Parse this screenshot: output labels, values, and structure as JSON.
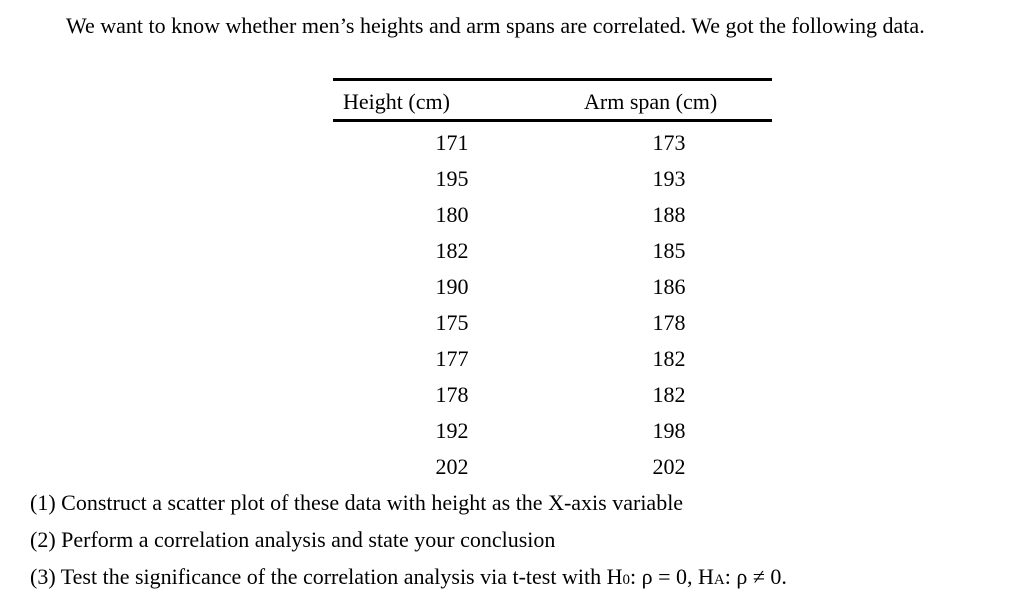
{
  "intro": "We want to know whether men’s heights and arm spans are correlated. We got the following data.",
  "table": {
    "headers": [
      "Height (cm)",
      "Arm span (cm)"
    ],
    "rows": [
      [
        "171",
        "173"
      ],
      [
        "195",
        "193"
      ],
      [
        "180",
        "188"
      ],
      [
        "182",
        "185"
      ],
      [
        "190",
        "186"
      ],
      [
        "175",
        "178"
      ],
      [
        "177",
        "182"
      ],
      [
        "178",
        "182"
      ],
      [
        "192",
        "198"
      ],
      [
        "202",
        "202"
      ]
    ]
  },
  "questions": {
    "q1": "(1) Construct a scatter plot of these data with height as the X-axis variable",
    "q2": "(2) Perform a correlation analysis and state your conclusion",
    "q3_prefix": "(3) Test the significance of the correlation analysis via t-test with H",
    "q3_sub1": "0",
    "q3_mid": ": ρ = 0, H",
    "q3_sub2": "A",
    "q3_suffix": ": ρ ≠ 0."
  }
}
